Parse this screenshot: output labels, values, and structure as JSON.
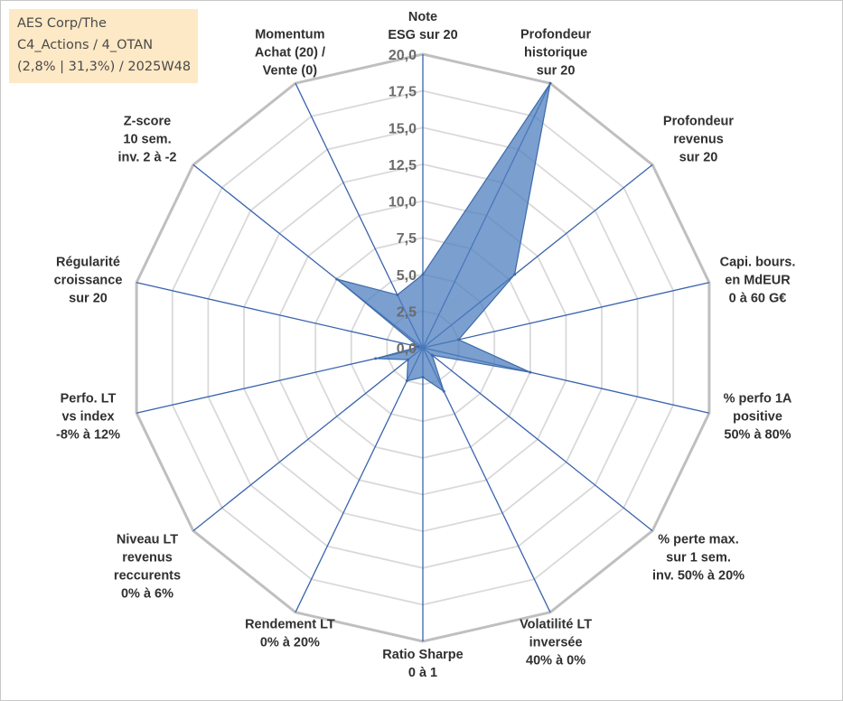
{
  "title_lines": [
    "AES Corp/The",
    "C4_Actions / 4_OTAN",
    "(2,8% | 31,3%) / 2025W48"
  ],
  "chart_data": {
    "type": "radar",
    "rmin": 0,
    "rmax": 20,
    "ticks": [
      "0,0",
      "2,5",
      "5,0",
      "7,5",
      "10,0",
      "12,5",
      "15,0",
      "17,5",
      "20,0"
    ],
    "axes": [
      {
        "label": [
          "Note",
          "ESG sur 20"
        ],
        "value": 5.0
      },
      {
        "label": [
          "Profondeur",
          "historique",
          "sur 20"
        ],
        "value": 20.0
      },
      {
        "label": [
          "Profondeur",
          "revenus",
          "sur 20"
        ],
        "value": 8.0
      },
      {
        "label": [
          "Capi. bours.",
          "en MdEUR",
          "0 à 60 G€"
        ],
        "value": 2.5
      },
      {
        "label": [
          "% perfo 1A",
          "positive",
          "50% à 80%"
        ],
        "value": 7.5
      },
      {
        "label": [
          "% perte max.",
          "sur 1 sem.",
          "inv. 50% à 20%"
        ],
        "value": 0.8
      },
      {
        "label": [
          "Volatilité LT",
          "inversée",
          "40% à 0%"
        ],
        "value": 3.3
      },
      {
        "label": [
          "Ratio Sharpe",
          "0 à 1"
        ],
        "value": 2.0
      },
      {
        "label": [
          "Rendement LT",
          "0% à 20%"
        ],
        "value": 2.5
      },
      {
        "label": [
          "Niveau LT",
          "revenus",
          "reccurents",
          "0% à 6%"
        ],
        "value": 1.3
      },
      {
        "label": [
          "Perfo. LT",
          "vs index",
          "-8% à 12%"
        ],
        "value": 3.3
      },
      {
        "label": [
          "Régularité",
          "croissance",
          "sur 20"
        ],
        "value": 0.3
      },
      {
        "label": [
          "Z-score",
          "10 sem.",
          "inv. 2 à -2"
        ],
        "value": 7.5
      },
      {
        "label": [
          "Momentum",
          "Achat (20) /",
          "Vente (0)"
        ],
        "value": 4.0
      }
    ],
    "colors": {
      "fill": "#4f7fbf",
      "fill_opacity": 0.75,
      "stroke": "#3d6aa8",
      "spoke": "#3a63ad",
      "ring": "#d9d9d9",
      "outer_ring": "#bfbfbf",
      "title_bg": "#fde9c6"
    }
  }
}
